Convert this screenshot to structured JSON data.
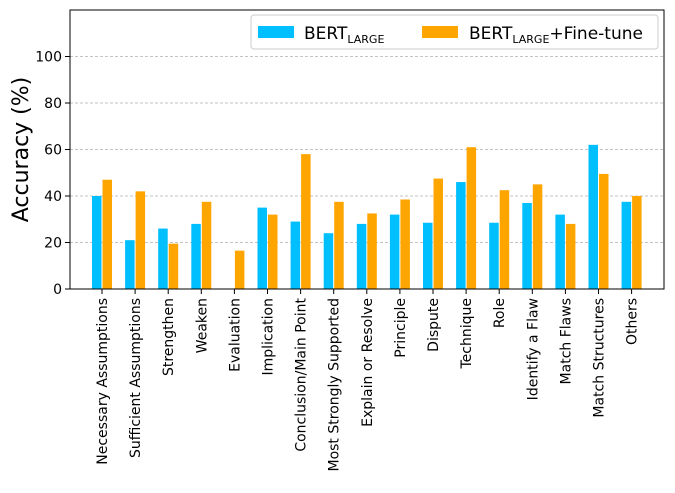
{
  "chart_data": {
    "type": "bar",
    "title": "",
    "xlabel": "",
    "ylabel": "Accuracy (%)",
    "ylim": [
      0,
      120
    ],
    "yticks": [
      0,
      20,
      40,
      60,
      80,
      100
    ],
    "grid": "horizontal dashed",
    "legend_position": "top-right",
    "categories": [
      "Necessary Assumptions",
      "Sufficient Assumptions",
      "Strengthen",
      "Weaken",
      "Evaluation",
      "Implication",
      "Conclusion/Main Point",
      "Most Strongly Supported",
      "Explain or Resolve",
      "Principle",
      "Dispute",
      "Technique",
      "Role",
      "Identify a Flaw",
      "Match Flaws",
      "Match Structures",
      "Others"
    ],
    "series": [
      {
        "name": "BERT",
        "name_sub": "LARGE",
        "name_suffix": "",
        "color": "#00bfff",
        "values": [
          40,
          21,
          26,
          28,
          0,
          35,
          29,
          24,
          28,
          32,
          28.5,
          46,
          28.5,
          37,
          32,
          62,
          37.5
        ]
      },
      {
        "name": "BERT",
        "name_sub": "LARGE",
        "name_suffix": "+Fine-tune",
        "color": "#ffa500",
        "values": [
          47,
          42,
          19.5,
          37.5,
          16.5,
          32,
          58,
          37.5,
          32.5,
          38.5,
          47.5,
          61,
          42.5,
          45,
          28,
          49.5,
          40
        ]
      }
    ]
  }
}
